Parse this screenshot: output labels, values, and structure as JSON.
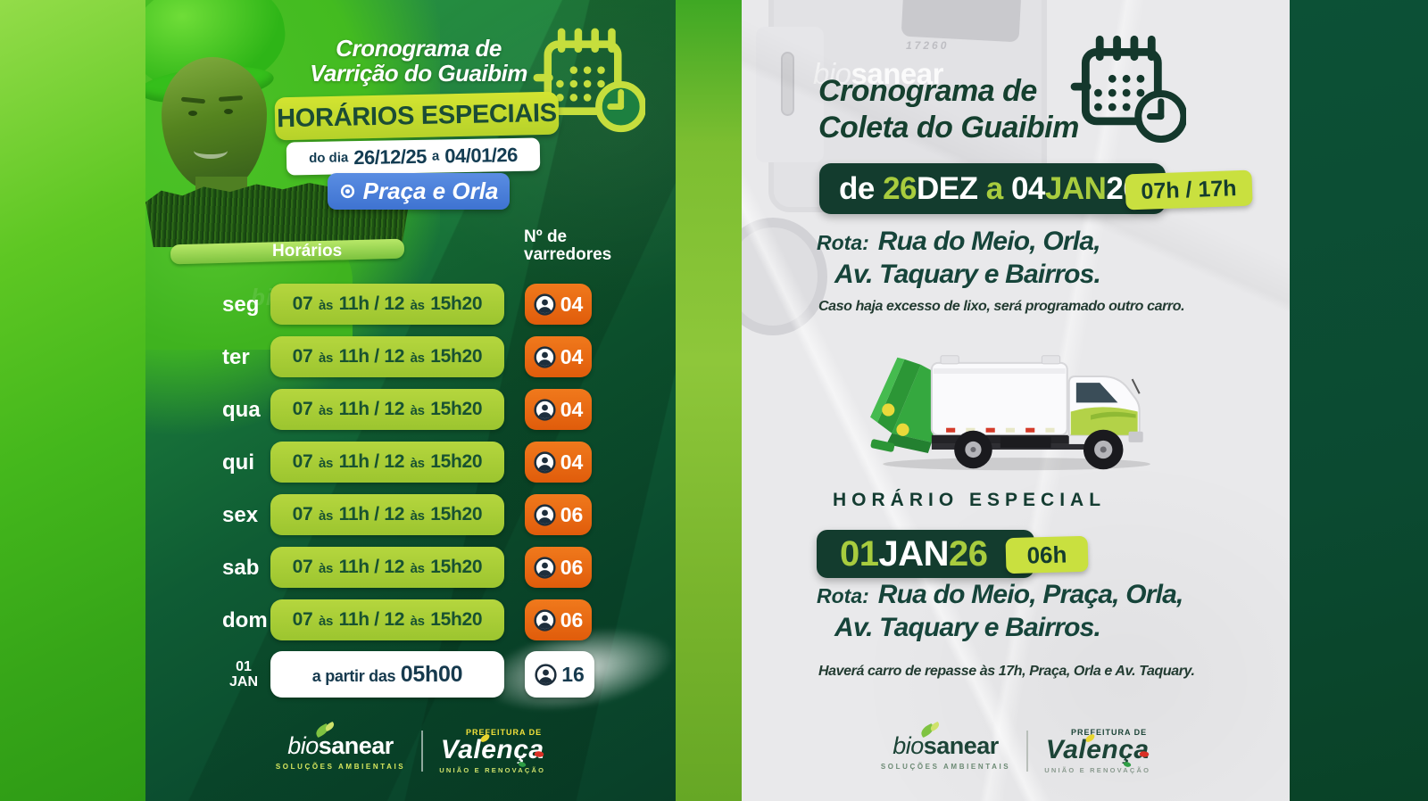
{
  "colors": {
    "accent_lime": "#c9e03f",
    "badge_dark_green": "#133c2e",
    "orange": "#e8680f",
    "blue": "#4d82dc",
    "deep_green_text": "#16443a",
    "left_bg_dark": "#0b4a31",
    "right_bg": "#e9e9eb"
  },
  "left_flyer": {
    "title_line1": "Cronograma de",
    "title_line2": "Varrição do Guaibim",
    "special_badge": "HORÁRIOS ESPECIAIS",
    "date_line": {
      "prefix": "do dia",
      "start": "26/12/25",
      "connector": "a",
      "end": "04/01/26"
    },
    "location": "Praça e Orla",
    "watermark": "biosanear",
    "table": {
      "header_time": "Horários",
      "header_workers_line1": "Nº de",
      "header_workers_line2": "varredores",
      "rows": [
        {
          "day": "seg",
          "time": "07 às 11h / 12 às 15h20",
          "workers": "04"
        },
        {
          "day": "ter",
          "time": "07 às 11h / 12 às 15h20",
          "workers": "04"
        },
        {
          "day": "qua",
          "time": "07 às 11h / 12 às 15h20",
          "workers": "04"
        },
        {
          "day": "qui",
          "time": "07 às 11h / 12 às 15h20",
          "workers": "04"
        },
        {
          "day": "sex",
          "time": "07 às 11h / 12 às 15h20",
          "workers": "06"
        },
        {
          "day": "sab",
          "time": "07 às 11h / 12 às 15h20",
          "workers": "06"
        },
        {
          "day": "dom",
          "time": "07 às 11h / 12 às 15h20",
          "workers": "06"
        }
      ],
      "special_row": {
        "day_line1": "01",
        "day_line2": "JAN",
        "time_prefix": "a partir das",
        "time_value": "05h00",
        "workers": "16"
      }
    }
  },
  "right_flyer": {
    "watermark_bio": "bio",
    "watermark_sanear": "sanear",
    "truck_number": "17260",
    "title_line1": "Cronograma de",
    "title_line2": "Coleta do Guaibim",
    "date_badge_segments": [
      {
        "text": "de ",
        "accent": false
      },
      {
        "text": "26",
        "accent": true
      },
      {
        "text": "DEZ",
        "accent": false
      },
      {
        "text": " a ",
        "accent": true
      },
      {
        "text": "04",
        "accent": false
      },
      {
        "text": "JAN",
        "accent": true
      },
      {
        "text": "26",
        "accent": false
      }
    ],
    "hours_badge": "07h / 17h",
    "route1_label": "Rota:",
    "route1_line1": "Rua do Meio, Orla,",
    "route1_line2": "Av. Taquary e Bairros.",
    "note1": "Caso haja excesso de lixo, será programado outro carro.",
    "special_heading": "HORÁRIO ESPECIAL",
    "special_date_segments": [
      {
        "text": "01",
        "accent": true
      },
      {
        "text": "JAN",
        "accent": false
      },
      {
        "text": "26",
        "accent": true
      }
    ],
    "special_hours_badge": "06h",
    "route2_label": "Rota:",
    "route2_line1": "Rua do Meio, Praça, Orla,",
    "route2_line2": "Av. Taquary e Bairros.",
    "note2": "Haverá carro de repasse às 17h, Praça, Orla e Av. Taquary."
  },
  "logos": {
    "bio": "bio",
    "sanear": "sanear",
    "bio_tagline": "SOLUÇÕES AMBIENTAIS",
    "prefeitura": "PREFEITURA DE",
    "valenca": "Valença",
    "valenca_tagline": "UNIÃO E RENOVAÇÃO"
  }
}
